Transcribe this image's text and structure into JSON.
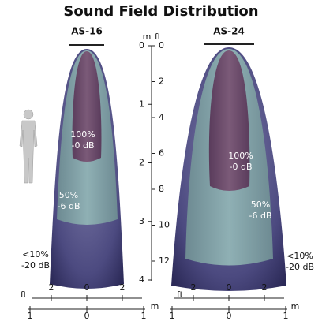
{
  "title": "Sound Field Distribution",
  "depth_axis": {
    "m_unit": "m",
    "ft_unit": "ft",
    "m_ticks": [
      "0",
      "1",
      "2",
      "3",
      "4"
    ],
    "ft_ticks": [
      "0",
      "2",
      "4",
      "6",
      "8",
      "10",
      "12"
    ]
  },
  "speakers": [
    {
      "name": "AS-16",
      "ft_unit": "ft",
      "m_unit": "m",
      "ft_scale": [
        "2",
        "0",
        "2"
      ],
      "m_scale": [
        "1",
        "0",
        "1"
      ],
      "labels": [
        {
          "percent": "100%",
          "db": "-0 dB"
        },
        {
          "percent": "50%",
          "db": "-6 dB"
        },
        {
          "percent": "<10%",
          "db": "-20 dB"
        }
      ]
    },
    {
      "name": "AS-24",
      "ft_unit": "ft",
      "m_unit": "m",
      "ft_scale": [
        "2",
        "0",
        "2"
      ],
      "m_scale": [
        "1",
        "0",
        "1"
      ],
      "labels": [
        {
          "percent": "100%",
          "db": "-0 dB"
        },
        {
          "percent": "50%",
          "db": "-6 dB"
        },
        {
          "percent": "<10%",
          "db": "-20 dB"
        }
      ]
    }
  ]
}
